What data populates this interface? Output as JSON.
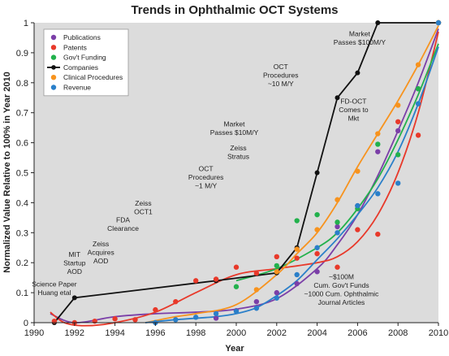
{
  "chart_data": {
    "type": "scatter",
    "title": "Trends in Ophthalmic OCT Systems",
    "xlabel": "Year",
    "ylabel": "Normalized Value Relative to 100% in Year 2010",
    "xlim": [
      1990,
      2010
    ],
    "ylim": [
      0,
      1
    ],
    "xticks": [
      "1990",
      "1992",
      "1994",
      "1996",
      "1998",
      "2000",
      "2002",
      "2004",
      "2006",
      "2008",
      "2010"
    ],
    "yticks": [
      "0",
      "0.1",
      "0.2",
      "0.3",
      "0.4",
      "0.5",
      "0.6",
      "0.7",
      "0.8",
      "0.9",
      "1"
    ],
    "grid": false,
    "legend_position": "top-left",
    "series": [
      {
        "name": "Publications",
        "marker": "dot",
        "color": "#7b3fa8",
        "points": [
          [
            1999,
            0.015
          ],
          [
            2000,
            0.04
          ],
          [
            2001,
            0.07
          ],
          [
            2002,
            0.1
          ],
          [
            2003,
            0.13
          ],
          [
            2004,
            0.17
          ],
          [
            2005,
            0.32
          ],
          [
            2006,
            0.39
          ],
          [
            2007,
            0.57
          ],
          [
            2008,
            0.64
          ],
          [
            2009,
            0.78
          ],
          [
            2010,
            1.0
          ]
        ],
        "trend": [
          [
            1990.8,
            0.03
          ],
          [
            1992,
            0.0
          ],
          [
            1994,
            0.02
          ],
          [
            1996,
            0.03
          ],
          [
            1998,
            0.035
          ],
          [
            2000,
            0.045
          ],
          [
            2002,
            0.08
          ],
          [
            2004,
            0.18
          ],
          [
            2005,
            0.26
          ],
          [
            2006,
            0.36
          ],
          [
            2007,
            0.49
          ],
          [
            2008,
            0.64
          ],
          [
            2009,
            0.8
          ],
          [
            2010,
            0.98
          ]
        ]
      },
      {
        "name": "Patents",
        "marker": "dot",
        "color": "#e8392a",
        "points": [
          [
            1991,
            0.005
          ],
          [
            1992,
            0.0
          ],
          [
            1993,
            0.005
          ],
          [
            1994,
            0.013
          ],
          [
            1995,
            0.01
          ],
          [
            1996,
            0.043
          ],
          [
            1997,
            0.07
          ],
          [
            1998,
            0.14
          ],
          [
            1999,
            0.145
          ],
          [
            2000,
            0.185
          ],
          [
            2001,
            0.165
          ],
          [
            2002,
            0.22
          ],
          [
            2003,
            0.215
          ],
          [
            2004,
            0.23
          ],
          [
            2005,
            0.185
          ],
          [
            2006,
            0.31
          ],
          [
            2007,
            0.295
          ],
          [
            2008,
            0.67
          ],
          [
            2009,
            0.625
          ],
          [
            2010,
            1.0
          ]
        ],
        "trend": [
          [
            1990.8,
            0.035
          ],
          [
            1991.5,
            0.0
          ],
          [
            1992.5,
            -0.01
          ],
          [
            1994,
            0.0
          ],
          [
            1996,
            0.035
          ],
          [
            1998,
            0.1
          ],
          [
            2000,
            0.16
          ],
          [
            2002,
            0.18
          ],
          [
            2004,
            0.2
          ],
          [
            2005,
            0.22
          ],
          [
            2006,
            0.27
          ],
          [
            2007,
            0.36
          ],
          [
            2008,
            0.5
          ],
          [
            2009,
            0.7
          ],
          [
            2010,
            0.97
          ]
        ]
      },
      {
        "name": "Gov't Funding",
        "marker": "dot",
        "color": "#22b14c",
        "points": [
          [
            2000,
            0.12
          ],
          [
            2002,
            0.19
          ],
          [
            2003,
            0.34
          ],
          [
            2004,
            0.36
          ],
          [
            2005,
            0.335
          ],
          [
            2006,
            0.38
          ],
          [
            2007,
            0.595
          ],
          [
            2008,
            0.56
          ],
          [
            2009,
            0.78
          ],
          [
            2010,
            1.0
          ]
        ],
        "trend": [
          [
            2000,
            0.14
          ],
          [
            2002,
            0.18
          ],
          [
            2004,
            0.25
          ],
          [
            2005,
            0.3
          ],
          [
            2006,
            0.38
          ],
          [
            2007,
            0.48
          ],
          [
            2008,
            0.61
          ],
          [
            2009,
            0.76
          ],
          [
            2010,
            0.93
          ]
        ]
      },
      {
        "name": "Companies",
        "marker": "line",
        "color": "#111111",
        "points": [
          [
            1991,
            0.0
          ],
          [
            1992,
            0.083
          ],
          [
            1999,
            0.14
          ],
          [
            2002,
            0.166
          ],
          [
            2003,
            0.25
          ],
          [
            2004,
            0.5
          ],
          [
            2005,
            0.75
          ],
          [
            2006,
            0.833
          ],
          [
            2007,
            1.0
          ],
          [
            2010,
            1.0
          ]
        ]
      },
      {
        "name": "Clinical Procedures",
        "marker": "dot",
        "color": "#f7931e",
        "points": [
          [
            2001,
            0.11
          ],
          [
            2002,
            0.17
          ],
          [
            2003,
            0.245
          ],
          [
            2004,
            0.31
          ],
          [
            2005,
            0.41
          ],
          [
            2006,
            0.505
          ],
          [
            2007,
            0.63
          ],
          [
            2008,
            0.725
          ],
          [
            2009,
            0.86
          ],
          [
            2010,
            1.0
          ]
        ],
        "trend": [
          [
            1995.5,
            0.0
          ],
          [
            1997,
            0.02
          ],
          [
            1998,
            0.03
          ],
          [
            2000,
            0.06
          ],
          [
            2002,
            0.16
          ],
          [
            2003,
            0.23
          ],
          [
            2004,
            0.3
          ],
          [
            2005,
            0.4
          ],
          [
            2006,
            0.52
          ],
          [
            2007,
            0.63
          ],
          [
            2008,
            0.74
          ],
          [
            2009,
            0.86
          ],
          [
            2010,
            0.99
          ]
        ]
      },
      {
        "name": "Revenue",
        "marker": "dot",
        "color": "#2a7fc9",
        "points": [
          [
            1996,
            0.0
          ],
          [
            1997,
            0.01
          ],
          [
            1998,
            0.018
          ],
          [
            1999,
            0.03
          ],
          [
            2000,
            0.038
          ],
          [
            2001,
            0.048
          ],
          [
            2002,
            0.082
          ],
          [
            2003,
            0.16
          ],
          [
            2004,
            0.25
          ],
          [
            2005,
            0.3
          ],
          [
            2006,
            0.39
          ],
          [
            2007,
            0.43
          ],
          [
            2008,
            0.465
          ],
          [
            2009,
            0.73
          ],
          [
            2010,
            1.0
          ]
        ],
        "trend": [
          [
            1995.5,
            0.0
          ],
          [
            1997,
            0.01
          ],
          [
            1999,
            0.02
          ],
          [
            2000,
            0.03
          ],
          [
            2001,
            0.05
          ],
          [
            2002,
            0.09
          ],
          [
            2003,
            0.14
          ],
          [
            2004,
            0.21
          ],
          [
            2005,
            0.28
          ],
          [
            2006,
            0.36
          ],
          [
            2007,
            0.45
          ],
          [
            2008,
            0.57
          ],
          [
            2009,
            0.73
          ],
          [
            2010,
            0.92
          ]
        ]
      }
    ],
    "annotations": [
      {
        "lines": [
          "Science Paper",
          "Huang etal"
        ],
        "x": 1991,
        "y": 0.12
      },
      {
        "lines": [
          "MIT",
          "Startup",
          "AOD"
        ],
        "x": 1992,
        "y": 0.22
      },
      {
        "lines": [
          "Zeiss",
          "Acquires",
          "AOD"
        ],
        "x": 1993.3,
        "y": 0.255
      },
      {
        "lines": [
          "FDA",
          "Clearance"
        ],
        "x": 1994.4,
        "y": 0.335
      },
      {
        "lines": [
          "Zeiss",
          "OCT1"
        ],
        "x": 1995.4,
        "y": 0.39
      },
      {
        "lines": [
          "OCT",
          "Procedures",
          "~1 M/Y"
        ],
        "x": 1998.5,
        "y": 0.505
      },
      {
        "lines": [
          "Zeiss",
          "Stratus"
        ],
        "x": 2000.1,
        "y": 0.575
      },
      {
        "lines": [
          "Market",
          "Passes $10M/Y"
        ],
        "x": 1999.9,
        "y": 0.655
      },
      {
        "lines": [
          "OCT",
          "Procedures",
          "~10 M/Y"
        ],
        "x": 2002.2,
        "y": 0.845
      },
      {
        "lines": [
          "FD-OCT",
          "Comes to",
          "Mkt"
        ],
        "x": 2005.8,
        "y": 0.73
      },
      {
        "lines": [
          "Market",
          "Passes $100M/Y"
        ],
        "x": 2006.1,
        "y": 0.955
      },
      {
        "lines": [
          "~$100M",
          "Cum. Gov't Funds",
          "~1000 Cum. Ophthalmic",
          "Journal Articles"
        ],
        "x": 2005.2,
        "y": 0.145
      }
    ]
  }
}
